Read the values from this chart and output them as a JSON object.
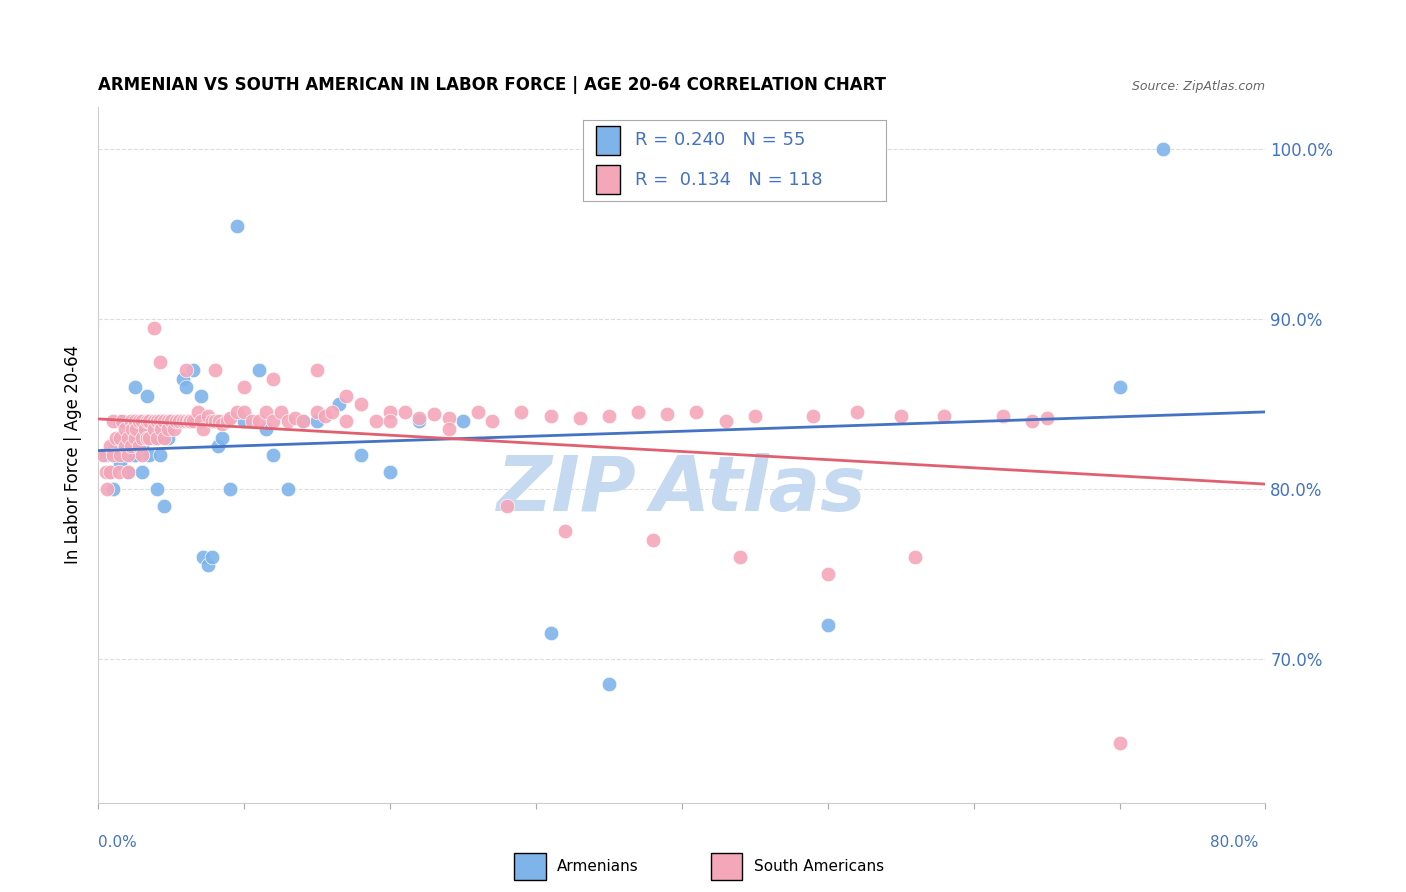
{
  "title": "ARMENIAN VS SOUTH AMERICAN IN LABOR FORCE | AGE 20-64 CORRELATION CHART",
  "source": "Source: ZipAtlas.com",
  "ylabel": "In Labor Force | Age 20-64",
  "xlim": [
    0.0,
    0.8
  ],
  "ylim": [
    0.615,
    1.025
  ],
  "yticks": [
    0.7,
    0.8,
    0.9,
    1.0
  ],
  "ytick_labels": [
    "70.0%",
    "80.0%",
    "90.0%",
    "100.0%"
  ],
  "legend_r_armenian": "0.240",
  "legend_n_armenian": "55",
  "legend_r_south": "0.134",
  "legend_n_south": "118",
  "color_armenian": "#7EB4EA",
  "color_south": "#F4A7B9",
  "color_line_armenian": "#4472C4",
  "color_line_south": "#E06070",
  "color_text_blue": "#4472C4",
  "watermark_color": "#C5D9F1",
  "armenian_x": [
    0.005,
    0.008,
    0.01,
    0.012,
    0.015,
    0.015,
    0.018,
    0.02,
    0.022,
    0.023,
    0.025,
    0.025,
    0.028,
    0.03,
    0.03,
    0.032,
    0.033,
    0.035,
    0.038,
    0.04,
    0.04,
    0.042,
    0.045,
    0.048,
    0.05,
    0.055,
    0.058,
    0.06,
    0.065,
    0.07,
    0.072,
    0.075,
    0.078,
    0.08,
    0.082,
    0.085,
    0.09,
    0.095,
    0.1,
    0.11,
    0.115,
    0.12,
    0.13,
    0.14,
    0.15,
    0.165,
    0.18,
    0.2,
    0.22,
    0.25,
    0.31,
    0.35,
    0.5,
    0.7,
    0.73
  ],
  "armenian_y": [
    0.82,
    0.81,
    0.8,
    0.825,
    0.815,
    0.84,
    0.83,
    0.81,
    0.83,
    0.82,
    0.86,
    0.82,
    0.835,
    0.81,
    0.825,
    0.84,
    0.855,
    0.82,
    0.83,
    0.8,
    0.84,
    0.82,
    0.79,
    0.83,
    0.84,
    0.84,
    0.865,
    0.86,
    0.87,
    0.855,
    0.76,
    0.755,
    0.76,
    0.84,
    0.825,
    0.83,
    0.8,
    0.955,
    0.84,
    0.87,
    0.835,
    0.82,
    0.8,
    0.84,
    0.84,
    0.85,
    0.82,
    0.81,
    0.84,
    0.84,
    0.715,
    0.685,
    0.72,
    0.86,
    1.0
  ],
  "south_x": [
    0.003,
    0.005,
    0.006,
    0.008,
    0.008,
    0.01,
    0.01,
    0.012,
    0.014,
    0.015,
    0.015,
    0.016,
    0.018,
    0.018,
    0.02,
    0.02,
    0.02,
    0.022,
    0.022,
    0.023,
    0.025,
    0.025,
    0.026,
    0.028,
    0.028,
    0.03,
    0.03,
    0.03,
    0.032,
    0.033,
    0.033,
    0.035,
    0.035,
    0.038,
    0.038,
    0.04,
    0.04,
    0.042,
    0.043,
    0.045,
    0.045,
    0.048,
    0.048,
    0.05,
    0.052,
    0.053,
    0.055,
    0.058,
    0.06,
    0.062,
    0.063,
    0.065,
    0.068,
    0.07,
    0.072,
    0.075,
    0.078,
    0.08,
    0.083,
    0.085,
    0.088,
    0.09,
    0.095,
    0.1,
    0.105,
    0.11,
    0.115,
    0.12,
    0.125,
    0.13,
    0.135,
    0.14,
    0.15,
    0.155,
    0.16,
    0.17,
    0.18,
    0.19,
    0.2,
    0.21,
    0.22,
    0.23,
    0.24,
    0.26,
    0.27,
    0.29,
    0.31,
    0.33,
    0.35,
    0.37,
    0.39,
    0.41,
    0.43,
    0.45,
    0.49,
    0.52,
    0.55,
    0.58,
    0.62,
    0.65,
    0.038,
    0.042,
    0.06,
    0.08,
    0.1,
    0.12,
    0.15,
    0.17,
    0.2,
    0.24,
    0.28,
    0.32,
    0.38,
    0.44,
    0.5,
    0.56,
    0.7,
    0.64
  ],
  "south_y": [
    0.82,
    0.81,
    0.8,
    0.825,
    0.81,
    0.84,
    0.82,
    0.83,
    0.81,
    0.83,
    0.82,
    0.84,
    0.825,
    0.835,
    0.83,
    0.82,
    0.81,
    0.84,
    0.825,
    0.835,
    0.83,
    0.84,
    0.835,
    0.825,
    0.84,
    0.83,
    0.84,
    0.82,
    0.835,
    0.84,
    0.83,
    0.84,
    0.83,
    0.84,
    0.835,
    0.84,
    0.83,
    0.84,
    0.835,
    0.84,
    0.83,
    0.84,
    0.835,
    0.84,
    0.835,
    0.84,
    0.84,
    0.84,
    0.84,
    0.84,
    0.84,
    0.84,
    0.845,
    0.84,
    0.835,
    0.843,
    0.84,
    0.84,
    0.84,
    0.838,
    0.84,
    0.842,
    0.845,
    0.845,
    0.84,
    0.84,
    0.845,
    0.84,
    0.845,
    0.84,
    0.842,
    0.84,
    0.845,
    0.843,
    0.845,
    0.84,
    0.85,
    0.84,
    0.845,
    0.845,
    0.842,
    0.844,
    0.842,
    0.845,
    0.84,
    0.845,
    0.843,
    0.842,
    0.843,
    0.845,
    0.844,
    0.845,
    0.84,
    0.843,
    0.843,
    0.845,
    0.843,
    0.843,
    0.843,
    0.842,
    0.895,
    0.875,
    0.87,
    0.87,
    0.86,
    0.865,
    0.87,
    0.855,
    0.84,
    0.835,
    0.79,
    0.775,
    0.77,
    0.76,
    0.75,
    0.76,
    0.65,
    0.84
  ]
}
